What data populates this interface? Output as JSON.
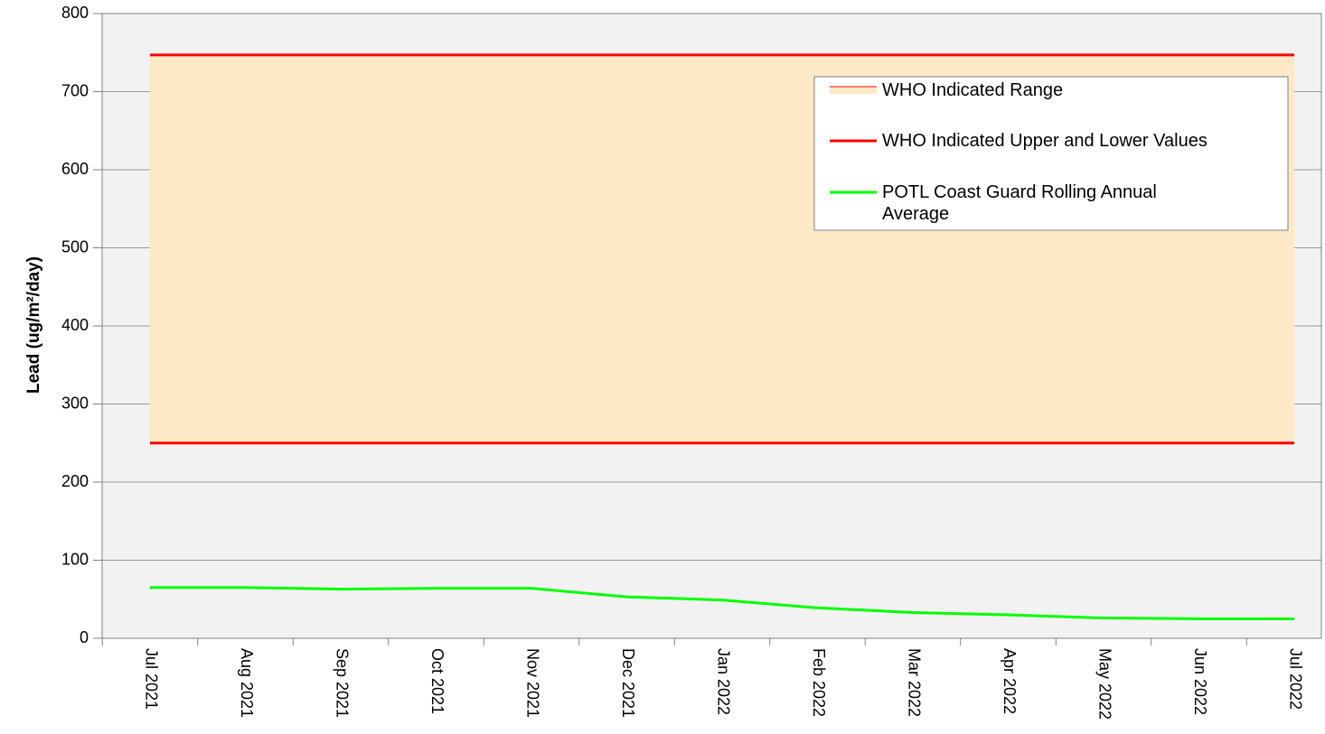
{
  "chart_data": {
    "type": "line",
    "y_label": "Lead (ug/m²/day)",
    "categories": [
      "Jul 2021",
      "Aug 2021",
      "Sep 2021",
      "Oct 2021",
      "Nov 2021",
      "Dec 2021",
      "Jan 2022",
      "Feb 2022",
      "Mar 2022",
      "Apr 2022",
      "May 2022",
      "Jun 2022",
      "Jul 2022"
    ],
    "ylim": [
      0,
      800
    ],
    "yticks": [
      0,
      100,
      200,
      300,
      400,
      500,
      600,
      700,
      800
    ],
    "grid": true,
    "legend": "upper right",
    "series": [
      {
        "name": "WHO Indicated Range",
        "color": "#fde9c6",
        "edge_color": "#ff0000",
        "low": [
          250,
          250,
          250,
          250,
          250,
          250,
          250,
          250,
          250,
          250,
          250,
          250,
          250
        ],
        "high": [
          747,
          747,
          747,
          747,
          747,
          747,
          747,
          747,
          747,
          747,
          747,
          747,
          747
        ]
      },
      {
        "name": "WHO Indicated Upper and Lower Values",
        "color": "#ff0000",
        "upper": [
          747,
          747,
          747,
          747,
          747,
          747,
          747,
          747,
          747,
          747,
          747,
          747,
          747
        ],
        "lower": [
          250,
          250,
          250,
          250,
          250,
          250,
          250,
          250,
          250,
          250,
          250,
          250,
          250
        ]
      },
      {
        "name": "POTL Coast Guard Rolling Annual Average",
        "color": "#00ff00",
        "values": [
          65,
          65,
          63,
          64,
          64,
          53,
          49,
          39,
          33,
          30,
          26,
          25,
          25
        ]
      }
    ]
  }
}
